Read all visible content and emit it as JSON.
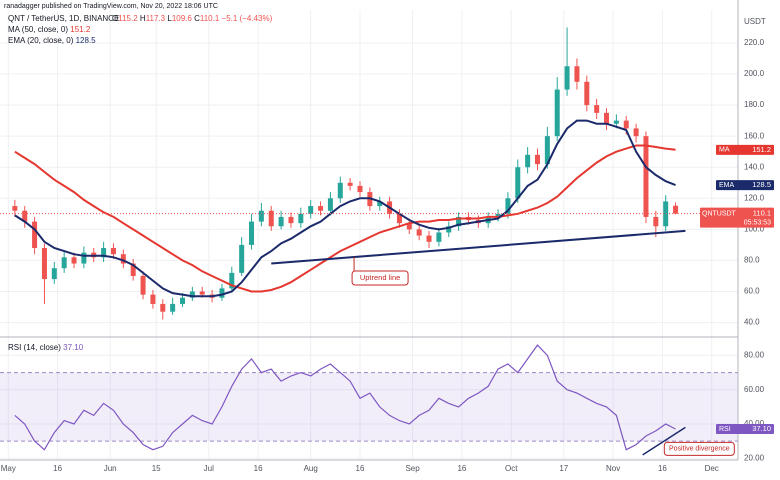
{
  "header": {
    "publisher": "ranadagger published on TradingView.com, Nov 20, 2022 18:06 UTC",
    "currency": "USDT",
    "countdown": "05:53:53"
  },
  "chart_data": [
    {
      "type": "candlestick",
      "title": "QNT / TetherUS, 1D, BINANCE",
      "symbol": "QNTUSDT",
      "ohlc_prefixes": [
        "O",
        "H",
        "L",
        "C"
      ],
      "change": "−5.1 (−4.43%)",
      "up_color": "#26a69a",
      "down_color": "#ef5350",
      "x": [
        2,
        5,
        8,
        11,
        14,
        17,
        20,
        23,
        26,
        29,
        32,
        35,
        38,
        41,
        44,
        47,
        50,
        53,
        56,
        59,
        62,
        65,
        68,
        71,
        74,
        77,
        80,
        83,
        86,
        89,
        92,
        95,
        98,
        101,
        104,
        107,
        110,
        113,
        116,
        119,
        122,
        125,
        128,
        131,
        134,
        137,
        140,
        143,
        146,
        149,
        152,
        155,
        158,
        161,
        164,
        167,
        170,
        173,
        176,
        179,
        182,
        185,
        188,
        191,
        194,
        197,
        200,
        203
      ],
      "open": [
        115,
        112,
        105,
        88,
        68,
        75,
        82,
        78,
        85,
        82,
        88,
        84,
        78,
        70,
        58,
        52,
        47,
        52,
        56,
        60,
        58,
        56,
        62,
        72,
        90,
        105,
        112,
        102,
        108,
        104,
        110,
        115,
        112,
        120,
        130,
        128,
        124,
        115,
        118,
        110,
        104,
        100,
        96,
        92,
        98,
        102,
        108,
        106,
        104,
        108,
        110,
        120,
        140,
        148,
        142,
        160,
        190,
        205,
        195,
        180,
        175,
        168,
        170,
        165,
        160,
        108,
        102,
        115.2
      ],
      "high": [
        119,
        115,
        108,
        91,
        79,
        86,
        85,
        89,
        88,
        92,
        91,
        87,
        81,
        73,
        61,
        55,
        56,
        59,
        63,
        63,
        61,
        65,
        76,
        95,
        110,
        117,
        115,
        112,
        111,
        114,
        119,
        118,
        124,
        134,
        133,
        131,
        127,
        121,
        121,
        113,
        107,
        103,
        99,
        101,
        105,
        111,
        111,
        109,
        111,
        113,
        124,
        145,
        153,
        152,
        166,
        198,
        230,
        210,
        199,
        184,
        178,
        174,
        173,
        168,
        163,
        112,
        122,
        117.3
      ],
      "low": [
        108,
        101,
        84,
        52,
        65,
        72,
        75,
        75,
        79,
        79,
        81,
        75,
        67,
        55,
        49,
        42,
        45,
        50,
        54,
        56,
        53,
        54,
        60,
        70,
        87,
        102,
        99,
        100,
        101,
        101,
        107,
        109,
        109,
        117,
        125,
        121,
        112,
        112,
        107,
        101,
        97,
        93,
        88,
        89,
        95,
        99,
        103,
        101,
        101,
        105,
        107,
        117,
        136,
        138,
        139,
        157,
        186,
        190,
        176,
        171,
        164,
        165,
        161,
        156,
        104,
        95,
        99,
        109.6
      ],
      "close": [
        112,
        105,
        88,
        68,
        75,
        82,
        78,
        85,
        82,
        88,
        84,
        78,
        70,
        58,
        52,
        47,
        52,
        56,
        60,
        58,
        56,
        62,
        72,
        90,
        105,
        112,
        102,
        108,
        104,
        110,
        115,
        112,
        120,
        130,
        128,
        124,
        115,
        118,
        110,
        104,
        100,
        96,
        92,
        98,
        102,
        108,
        106,
        104,
        108,
        110,
        120,
        140,
        148,
        142,
        160,
        190,
        205,
        195,
        180,
        175,
        168,
        170,
        165,
        160,
        108,
        102,
        118,
        110.1
      ],
      "series": [
        {
          "name": "MA",
          "legend": "MA (50, close, 0)",
          "color": "#e5372f",
          "values": [
            150,
            146,
            142,
            137,
            132,
            128,
            124,
            119,
            115,
            111,
            108,
            104,
            100,
            96,
            92,
            88,
            84,
            80,
            77,
            73,
            70,
            67,
            64,
            62,
            60,
            60,
            61,
            63,
            66,
            70,
            74,
            78,
            82,
            86,
            89,
            92,
            95,
            98,
            100,
            102,
            104,
            105,
            105,
            106,
            106,
            107,
            107,
            107,
            108,
            108,
            109,
            110,
            112,
            114,
            117,
            121,
            127,
            133,
            138,
            143,
            147,
            150,
            152,
            154,
            154,
            153,
            152,
            151.2
          ]
        },
        {
          "name": "EMA",
          "legend": "EMA (20, close, 0)",
          "color": "#1b2a6b",
          "values": [
            109,
            105,
            100,
            92,
            88,
            86,
            84,
            83,
            83,
            83,
            82,
            80,
            77,
            72,
            67,
            62,
            59,
            58,
            57,
            57,
            57,
            58,
            60,
            66,
            74,
            82,
            86,
            91,
            94,
            98,
            102,
            105,
            110,
            115,
            118,
            120,
            120,
            118,
            114,
            110,
            106,
            103,
            101,
            100,
            101,
            103,
            104,
            105,
            106,
            107,
            112,
            120,
            128,
            132,
            142,
            155,
            165,
            170,
            170,
            168,
            168,
            166,
            164,
            150,
            140,
            135,
            131,
            128.5
          ]
        }
      ],
      "xlim": [
        -1,
        222
      ],
      "ylim": [
        32,
        238
      ],
      "yticks": [
        {
          "value": 40,
          "label": "40.0"
        },
        {
          "value": 60,
          "label": "60.0"
        },
        {
          "value": 80,
          "label": "80.0"
        },
        {
          "value": 100,
          "label": "100.0"
        },
        {
          "value": 120,
          "label": "120.0"
        },
        {
          "value": 140,
          "label": "140.0"
        },
        {
          "value": 160,
          "label": "160.0"
        },
        {
          "value": 180,
          "label": "180.0"
        },
        {
          "value": 200,
          "label": "200.0"
        },
        {
          "value": 220,
          "label": "220.0"
        }
      ],
      "xticks": [
        {
          "value": 0,
          "label": "May"
        },
        {
          "value": 15,
          "label": "16"
        },
        {
          "value": 31,
          "label": "Jun"
        },
        {
          "value": 45,
          "label": "15"
        },
        {
          "value": 61,
          "label": "Jul"
        },
        {
          "value": 76,
          "label": "16"
        },
        {
          "value": 92,
          "label": "Aug"
        },
        {
          "value": 107,
          "label": "16"
        },
        {
          "value": 123,
          "label": "Sep"
        },
        {
          "value": 138,
          "label": "16"
        },
        {
          "value": 153,
          "label": "Oct"
        },
        {
          "value": 169,
          "label": "17"
        },
        {
          "value": 184,
          "label": "Nov"
        },
        {
          "value": 199,
          "label": "16"
        },
        {
          "value": 214,
          "label": "Dec"
        }
      ],
      "grid": true,
      "annotations": [
        {
          "text": "Uptrend line",
          "from": [
            80,
            78
          ],
          "to": [
            206,
            99
          ]
        }
      ]
    },
    {
      "type": "line",
      "name": "RSI",
      "legend": "RSI (14, close)",
      "color": "#7e57c2",
      "values": [
        45,
        40,
        30,
        25,
        35,
        42,
        40,
        48,
        45,
        52,
        48,
        40,
        35,
        28,
        25,
        27,
        35,
        40,
        45,
        42,
        40,
        50,
        62,
        72,
        78,
        70,
        72,
        65,
        68,
        70,
        68,
        72,
        75,
        70,
        65,
        55,
        58,
        50,
        45,
        42,
        40,
        45,
        48,
        55,
        52,
        50,
        55,
        58,
        62,
        72,
        75,
        70,
        78,
        86,
        80,
        65,
        60,
        58,
        55,
        52,
        50,
        45,
        25,
        28,
        33,
        36,
        40,
        37.1
      ],
      "value_labels": {
        "67": "37.10"
      },
      "bands": [
        30,
        70
      ],
      "ylim": [
        19,
        89
      ],
      "yticks": [
        {
          "value": 20,
          "label": "20.00"
        },
        {
          "value": 40,
          "label": "40.00"
        },
        {
          "value": 60,
          "label": "60.00"
        },
        {
          "value": 80,
          "label": "80.00"
        }
      ],
      "annotations": [
        {
          "text": "Positive divergence",
          "from": [
            193,
            22
          ],
          "to": [
            206,
            38
          ]
        }
      ]
    }
  ]
}
